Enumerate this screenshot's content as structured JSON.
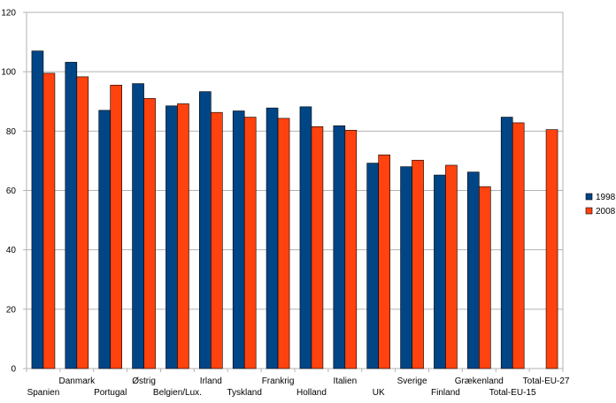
{
  "chart_data": {
    "type": "bar",
    "title": "",
    "xlabel": "",
    "ylabel": "",
    "ylim": [
      0,
      120
    ],
    "yticks": [
      0,
      20,
      40,
      60,
      80,
      100,
      120
    ],
    "grid": true,
    "legend_position": "right",
    "categories": [
      "Spanien",
      "Danmark",
      "Portugal",
      "Østrig",
      "Belgien/Lux.",
      "Irland",
      "Tyskland",
      "Frankrig",
      "Holland",
      "Italien",
      "UK",
      "Sverige",
      "Finland",
      "Grækenland",
      "Total-EU-15",
      "Total-EU-27"
    ],
    "series": [
      {
        "name": "1998",
        "color": "#004586",
        "values": [
          107,
          103.2,
          87,
          96,
          88.5,
          93.3,
          86.8,
          87.8,
          88.2,
          81.8,
          69.2,
          68,
          65.2,
          66.2,
          84.7,
          null
        ]
      },
      {
        "name": "2008",
        "color": "#ff420e",
        "values": [
          99.5,
          98.3,
          95.5,
          91,
          89.2,
          86.3,
          84.7,
          84.3,
          81.5,
          80.3,
          72,
          70.2,
          68.5,
          61.3,
          82.8,
          80.5
        ]
      }
    ]
  }
}
